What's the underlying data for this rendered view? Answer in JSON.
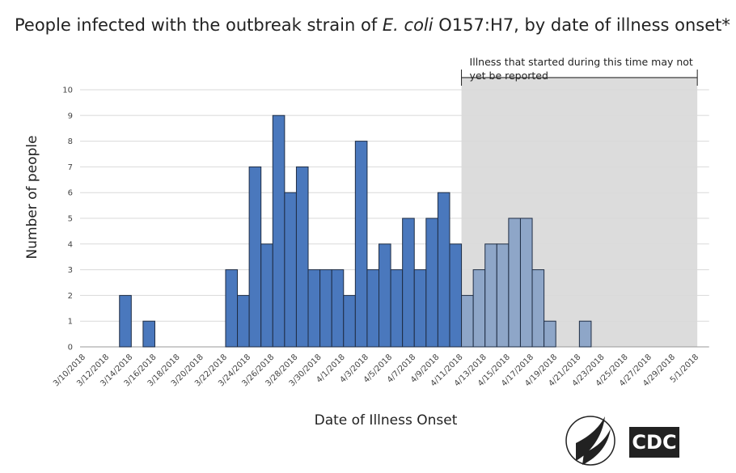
{
  "chart_data": {
    "type": "bar",
    "title": [
      "People infected with the outbreak strain of ",
      "E. coli",
      " O157:H7, by date of illness onset*"
    ],
    "x_label": "Date of Illness Onset",
    "y_label": "Number of people",
    "annotation": [
      "Illness that started during this time may not",
      "yet be reported"
    ],
    "shaded_from": "4/11/2018",
    "shaded_to": "5/1/2018",
    "categories": [
      "3/10/2018",
      null,
      "3/12/2018",
      null,
      "3/14/2018",
      null,
      "3/16/2018",
      null,
      "3/18/2018",
      null,
      "3/20/2018",
      null,
      "3/22/2018",
      null,
      "3/24/2018",
      null,
      "3/26/2018",
      null,
      "3/28/2018",
      null,
      "3/30/2018",
      null,
      "4/1/2018",
      null,
      "4/3/2018",
      null,
      "4/5/2018",
      null,
      "4/7/2018",
      null,
      "4/9/2018",
      null,
      "4/11/2018",
      null,
      "4/13/2018",
      null,
      "4/15/2018",
      null,
      "4/17/2018",
      null,
      "4/19/2018",
      null,
      "4/21/2018",
      null,
      "4/23/2018",
      null,
      "4/25/2018",
      null,
      "4/27/2018",
      null,
      "4/29/2018",
      null,
      "5/1/2018"
    ],
    "values": [
      0,
      0,
      0,
      2,
      0,
      1,
      0,
      0,
      0,
      0,
      0,
      0,
      3,
      2,
      7,
      4,
      9,
      6,
      7,
      3,
      3,
      3,
      2,
      8,
      3,
      4,
      3,
      5,
      3,
      5,
      6,
      4,
      2,
      3,
      4,
      4,
      5,
      5,
      3,
      1,
      0,
      0,
      1,
      0,
      0,
      0,
      0,
      0,
      0,
      0,
      0,
      0,
      0
    ],
    "color": "#4a78bd",
    "recent_color": "#8ea6c8",
    "ylim": [
      0,
      10
    ],
    "yticks": [
      0,
      1,
      2,
      3,
      4,
      5,
      6,
      7,
      8,
      9,
      10
    ],
    "grid": true,
    "logo_text": "CDC"
  }
}
